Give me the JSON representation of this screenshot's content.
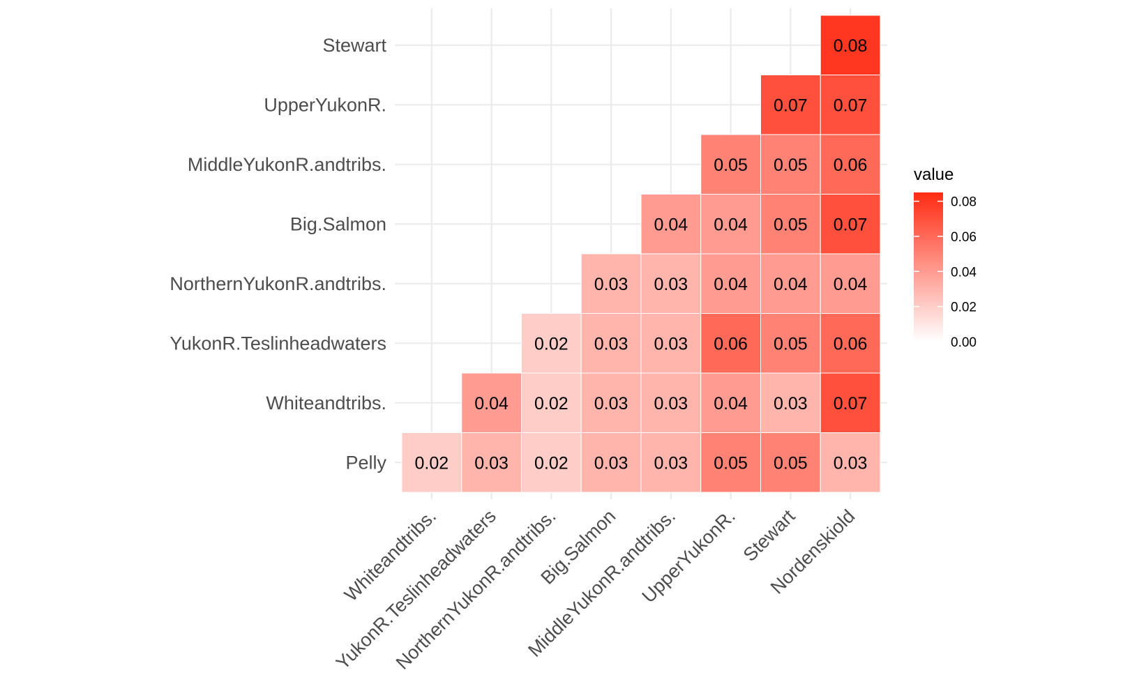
{
  "chart_data": {
    "type": "heatmap",
    "x_categories": [
      "Whiteandtribs.",
      "YukonR.Teslinheadwaters",
      "NorthernYukonR.andtribs.",
      "Big.Salmon",
      "MiddleYukonR.andtribs.",
      "UpperYukonR.",
      "Stewart",
      "Nordenskiold"
    ],
    "y_categories": [
      "Pelly",
      "Whiteandtribs.",
      "YukonR.Teslinheadwaters",
      "NorthernYukonR.andtribs.",
      "Big.Salmon",
      "MiddleYukonR.andtribs.",
      "UpperYukonR.",
      "Stewart"
    ],
    "cells": [
      {
        "x": "Whiteandtribs.",
        "y": "Pelly",
        "value": 0.02,
        "label": "0.02"
      },
      {
        "x": "YukonR.Teslinheadwaters",
        "y": "Pelly",
        "value": 0.03,
        "label": "0.03"
      },
      {
        "x": "NorthernYukonR.andtribs.",
        "y": "Pelly",
        "value": 0.02,
        "label": "0.02"
      },
      {
        "x": "Big.Salmon",
        "y": "Pelly",
        "value": 0.03,
        "label": "0.03"
      },
      {
        "x": "MiddleYukonR.andtribs.",
        "y": "Pelly",
        "value": 0.03,
        "label": "0.03"
      },
      {
        "x": "UpperYukonR.",
        "y": "Pelly",
        "value": 0.05,
        "label": "0.05"
      },
      {
        "x": "Stewart",
        "y": "Pelly",
        "value": 0.05,
        "label": "0.05"
      },
      {
        "x": "Nordenskiold",
        "y": "Pelly",
        "value": 0.03,
        "label": "0.03"
      },
      {
        "x": "YukonR.Teslinheadwaters",
        "y": "Whiteandtribs.",
        "value": 0.04,
        "label": "0.04"
      },
      {
        "x": "NorthernYukonR.andtribs.",
        "y": "Whiteandtribs.",
        "value": 0.02,
        "label": "0.02"
      },
      {
        "x": "Big.Salmon",
        "y": "Whiteandtribs.",
        "value": 0.03,
        "label": "0.03"
      },
      {
        "x": "MiddleYukonR.andtribs.",
        "y": "Whiteandtribs.",
        "value": 0.03,
        "label": "0.03"
      },
      {
        "x": "UpperYukonR.",
        "y": "Whiteandtribs.",
        "value": 0.04,
        "label": "0.04"
      },
      {
        "x": "Stewart",
        "y": "Whiteandtribs.",
        "value": 0.03,
        "label": "0.03"
      },
      {
        "x": "Nordenskiold",
        "y": "Whiteandtribs.",
        "value": 0.07,
        "label": "0.07"
      },
      {
        "x": "NorthernYukonR.andtribs.",
        "y": "YukonR.Teslinheadwaters",
        "value": 0.02,
        "label": "0.02"
      },
      {
        "x": "Big.Salmon",
        "y": "YukonR.Teslinheadwaters",
        "value": 0.03,
        "label": "0.03"
      },
      {
        "x": "MiddleYukonR.andtribs.",
        "y": "YukonR.Teslinheadwaters",
        "value": 0.03,
        "label": "0.03"
      },
      {
        "x": "UpperYukonR.",
        "y": "YukonR.Teslinheadwaters",
        "value": 0.06,
        "label": "0.06"
      },
      {
        "x": "Stewart",
        "y": "YukonR.Teslinheadwaters",
        "value": 0.05,
        "label": "0.05"
      },
      {
        "x": "Nordenskiold",
        "y": "YukonR.Teslinheadwaters",
        "value": 0.06,
        "label": "0.06"
      },
      {
        "x": "Big.Salmon",
        "y": "NorthernYukonR.andtribs.",
        "value": 0.03,
        "label": "0.03"
      },
      {
        "x": "MiddleYukonR.andtribs.",
        "y": "NorthernYukonR.andtribs.",
        "value": 0.03,
        "label": "0.03"
      },
      {
        "x": "UpperYukonR.",
        "y": "NorthernYukonR.andtribs.",
        "value": 0.04,
        "label": "0.04"
      },
      {
        "x": "Stewart",
        "y": "NorthernYukonR.andtribs.",
        "value": 0.04,
        "label": "0.04"
      },
      {
        "x": "Nordenskiold",
        "y": "NorthernYukonR.andtribs.",
        "value": 0.04,
        "label": "0.04"
      },
      {
        "x": "MiddleYukonR.andtribs.",
        "y": "Big.Salmon",
        "value": 0.04,
        "label": "0.04"
      },
      {
        "x": "UpperYukonR.",
        "y": "Big.Salmon",
        "value": 0.04,
        "label": "0.04"
      },
      {
        "x": "Stewart",
        "y": "Big.Salmon",
        "value": 0.05,
        "label": "0.05"
      },
      {
        "x": "Nordenskiold",
        "y": "Big.Salmon",
        "value": 0.07,
        "label": "0.07"
      },
      {
        "x": "UpperYukonR.",
        "y": "MiddleYukonR.andtribs.",
        "value": 0.05,
        "label": "0.05"
      },
      {
        "x": "Stewart",
        "y": "MiddleYukonR.andtribs.",
        "value": 0.05,
        "label": "0.05"
      },
      {
        "x": "Nordenskiold",
        "y": "MiddleYukonR.andtribs.",
        "value": 0.06,
        "label": "0.06"
      },
      {
        "x": "Stewart",
        "y": "UpperYukonR.",
        "value": 0.07,
        "label": "0.07"
      },
      {
        "x": "Nordenskiold",
        "y": "UpperYukonR.",
        "value": 0.07,
        "label": "0.07"
      },
      {
        "x": "Nordenskiold",
        "y": "Stewart",
        "value": 0.08,
        "label": "0.08"
      }
    ],
    "legend": {
      "title": "value",
      "placement": "right",
      "ticks": [
        "0.00",
        "0.02",
        "0.04",
        "0.06",
        "0.08"
      ],
      "tick_values": [
        0.0,
        0.02,
        0.04,
        0.06,
        0.08
      ],
      "range": [
        0.0,
        0.085
      ]
    },
    "colors": {
      "low": "#ffffff",
      "high": "#ff2a13"
    },
    "grid": true,
    "title": "",
    "xlabel": "",
    "ylabel": ""
  }
}
